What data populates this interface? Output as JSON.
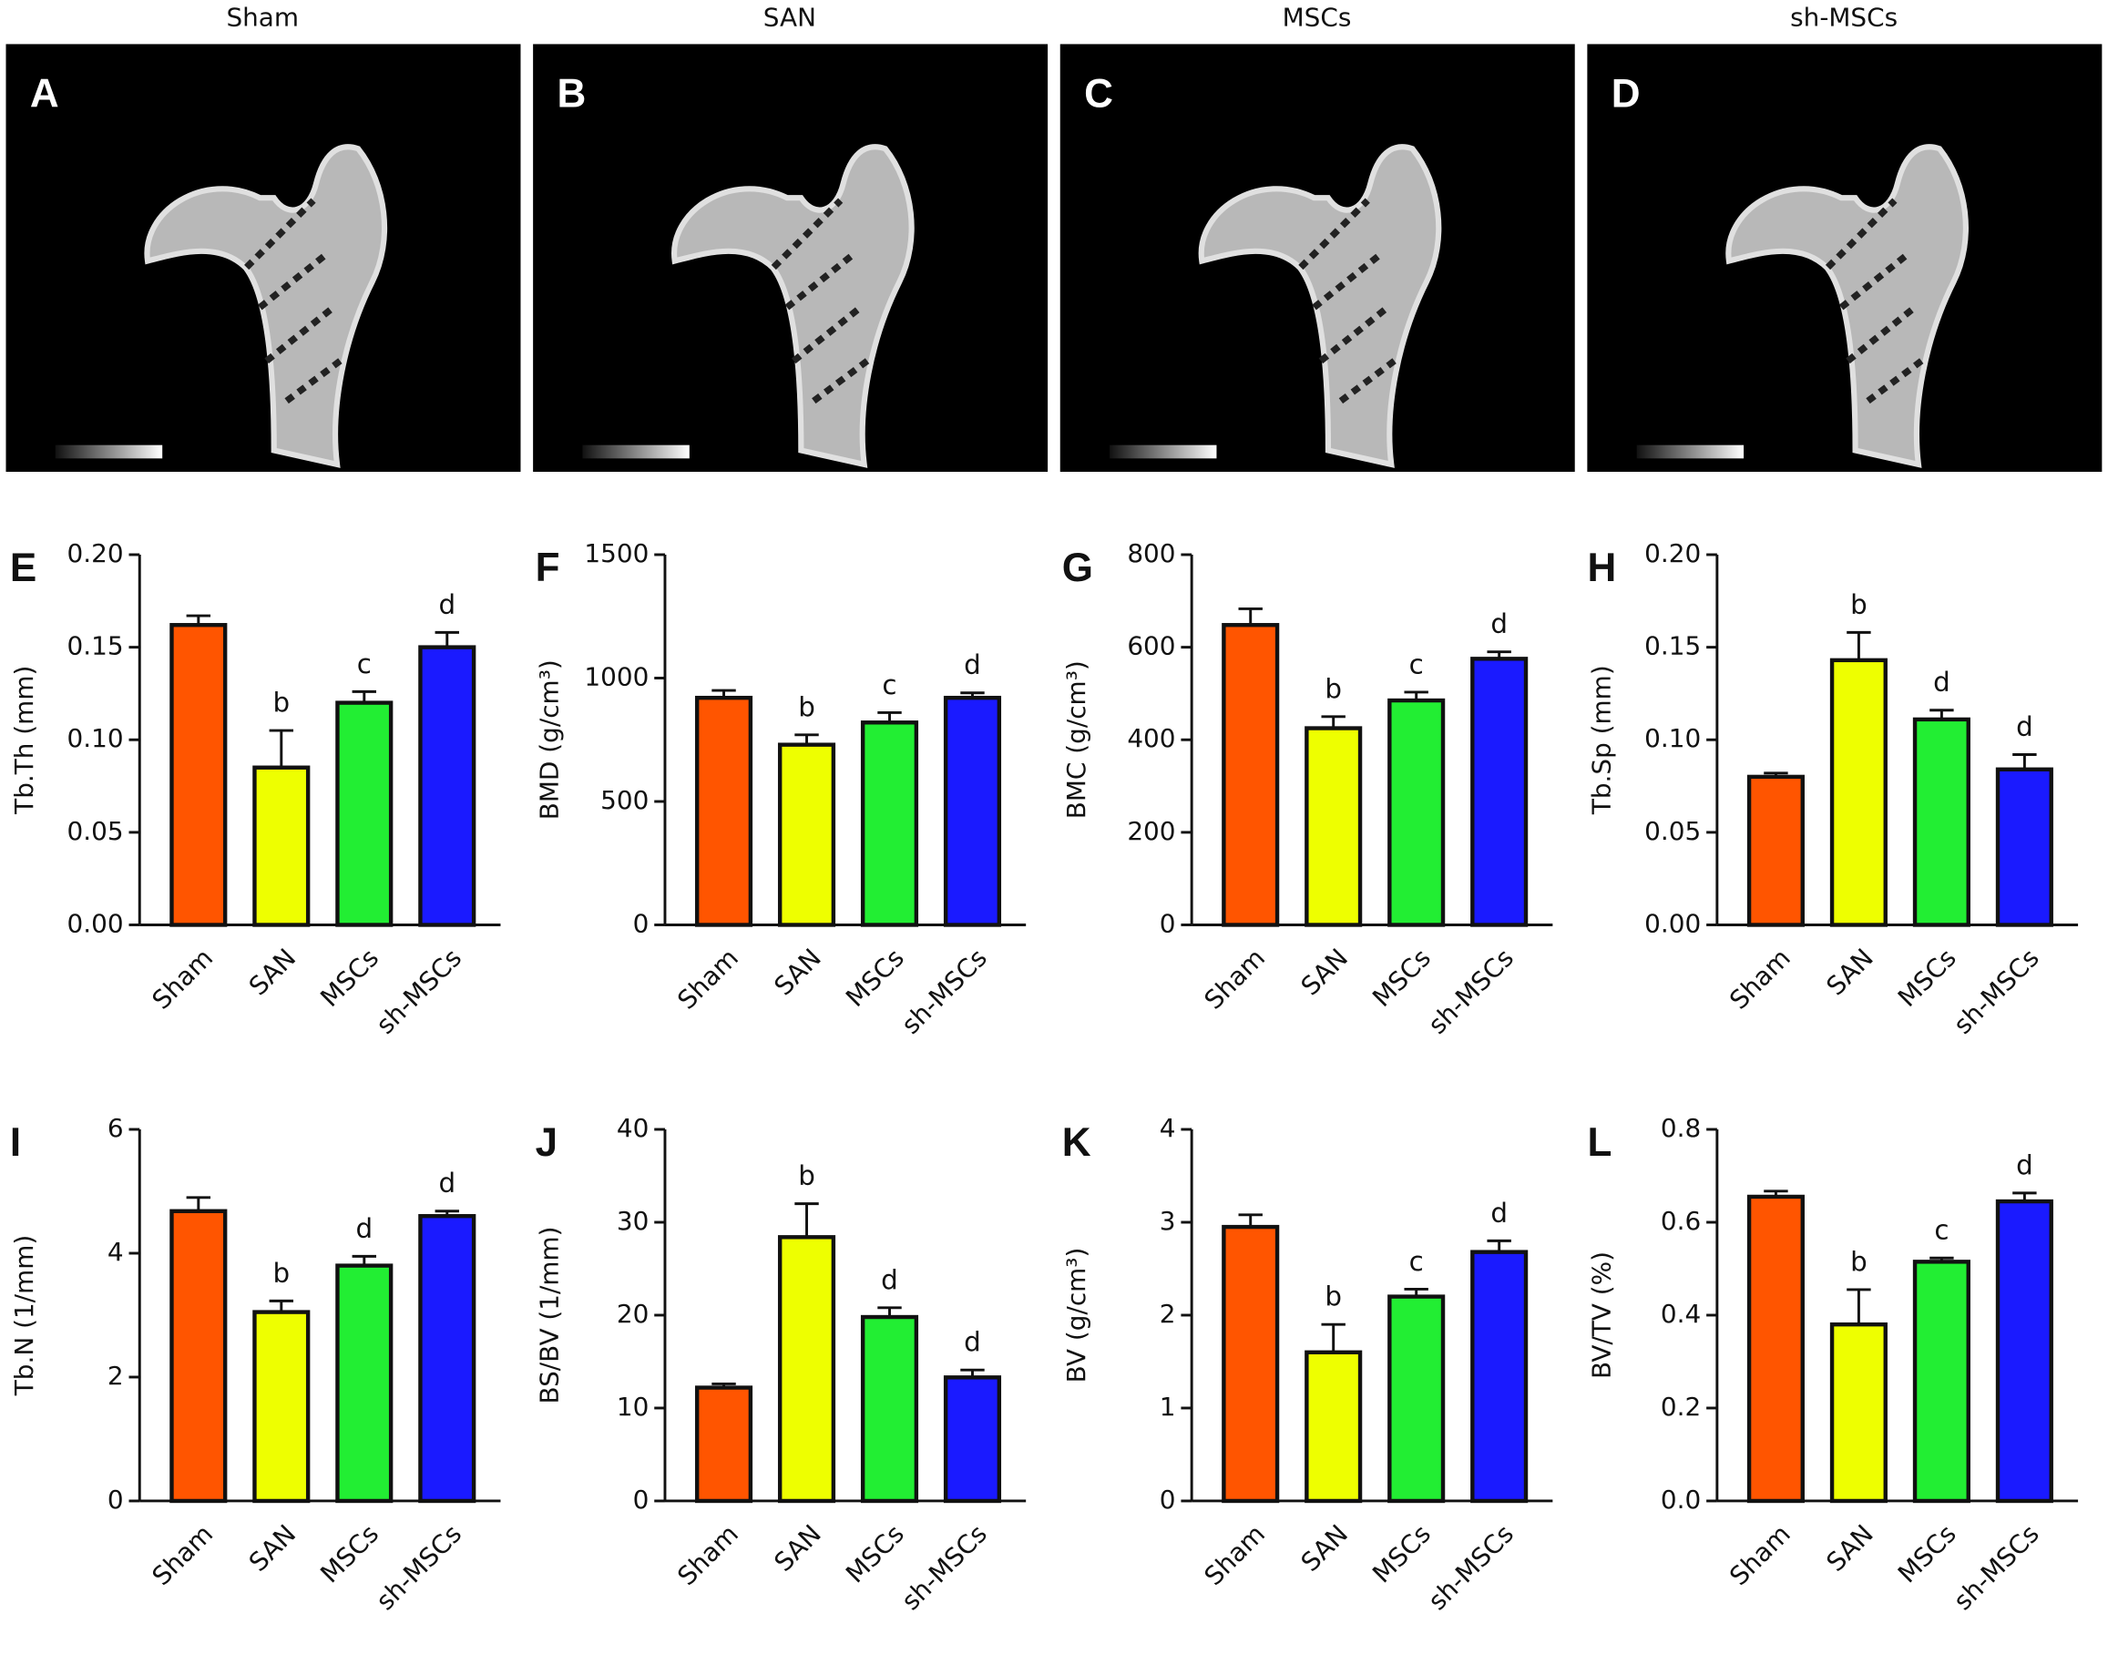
{
  "image_panels": [
    {
      "label": "A",
      "title": "Sham"
    },
    {
      "label": "B",
      "title": "SAN"
    },
    {
      "label": "C",
      "title": "MSCs"
    },
    {
      "label": "D",
      "title": "sh-MSCs"
    }
  ],
  "chart_data": [
    {
      "type": "bar",
      "panel": "E",
      "ylabel": "Tb.Th (mm)",
      "categories": [
        "Sham",
        "SAN",
        "MSCs",
        "sh-MSCs"
      ],
      "values": [
        0.162,
        0.085,
        0.12,
        0.15
      ],
      "errors": [
        0.005,
        0.02,
        0.006,
        0.008
      ],
      "annotations": [
        null,
        "b",
        "c",
        "d"
      ],
      "colors": [
        "#ff5500",
        "#eeff00",
        "#22ee33",
        "#1a1aff"
      ],
      "ylim": [
        0,
        0.2
      ],
      "yticks": [
        {
          "value": 0,
          "label": "0.00"
        },
        {
          "value": 0.05,
          "label": "0.05"
        },
        {
          "value": 0.1,
          "label": "0.10"
        },
        {
          "value": 0.15,
          "label": "0.15"
        },
        {
          "value": 0.2,
          "label": "0.20"
        }
      ]
    },
    {
      "type": "bar",
      "panel": "F",
      "ylabel": "BMD (g/cm³)",
      "categories": [
        "Sham",
        "SAN",
        "MSCs",
        "sh-MSCs"
      ],
      "values": [
        920,
        730,
        820,
        920
      ],
      "errors": [
        30,
        40,
        40,
        20
      ],
      "annotations": [
        null,
        "b",
        "c",
        "d"
      ],
      "colors": [
        "#ff5500",
        "#eeff00",
        "#22ee33",
        "#1a1aff"
      ],
      "ylim": [
        0,
        1500
      ],
      "yticks": [
        0,
        500,
        1000,
        1500
      ]
    },
    {
      "type": "bar",
      "panel": "G",
      "ylabel": "BMC (g/cm³)",
      "categories": [
        "Sham",
        "SAN",
        "MSCs",
        "sh-MSCs"
      ],
      "values": [
        648,
        425,
        485,
        575
      ],
      "errors": [
        35,
        25,
        18,
        15
      ],
      "annotations": [
        null,
        "b",
        "c",
        "d"
      ],
      "colors": [
        "#ff5500",
        "#eeff00",
        "#22ee33",
        "#1a1aff"
      ],
      "ylim": [
        0,
        800
      ],
      "yticks": [
        0,
        200,
        400,
        600,
        800
      ]
    },
    {
      "type": "bar",
      "panel": "H",
      "ylabel": "Tb.Sp (mm)",
      "categories": [
        "Sham",
        "SAN",
        "MSCs",
        "sh-MSCs"
      ],
      "values": [
        0.08,
        0.143,
        0.111,
        0.084
      ],
      "errors": [
        0.002,
        0.015,
        0.005,
        0.008
      ],
      "annotations": [
        null,
        "b",
        "d",
        "d"
      ],
      "colors": [
        "#ff5500",
        "#eeff00",
        "#22ee33",
        "#1a1aff"
      ],
      "ylim": [
        0,
        0.2
      ],
      "yticks": [
        {
          "value": 0,
          "label": "0.00"
        },
        {
          "value": 0.05,
          "label": "0.05"
        },
        {
          "value": 0.1,
          "label": "0.10"
        },
        {
          "value": 0.15,
          "label": "0.15"
        },
        {
          "value": 0.2,
          "label": "0.20"
        }
      ]
    },
    {
      "type": "bar",
      "panel": "I",
      "ylabel": "Tb.N (1/mm)",
      "categories": [
        "Sham",
        "SAN",
        "MSCs",
        "sh-MSCs"
      ],
      "values": [
        4.68,
        3.05,
        3.8,
        4.6
      ],
      "errors": [
        0.22,
        0.18,
        0.15,
        0.08
      ],
      "annotations": [
        null,
        "b",
        "d",
        "d"
      ],
      "colors": [
        "#ff5500",
        "#eeff00",
        "#22ee33",
        "#1a1aff"
      ],
      "ylim": [
        0,
        6
      ],
      "yticks": [
        0,
        2,
        4,
        6
      ]
    },
    {
      "type": "bar",
      "panel": "J",
      "ylabel": "BS/BV (1/mm)",
      "categories": [
        "Sham",
        "SAN",
        "MSCs",
        "sh-MSCs"
      ],
      "values": [
        12.2,
        28.4,
        19.8,
        13.3
      ],
      "errors": [
        0.4,
        3.6,
        1,
        0.8
      ],
      "annotations": [
        null,
        "b",
        "d",
        "d"
      ],
      "colors": [
        "#ff5500",
        "#eeff00",
        "#22ee33",
        "#1a1aff"
      ],
      "ylim": [
        0,
        40
      ],
      "yticks": [
        0,
        10,
        20,
        30,
        40
      ]
    },
    {
      "type": "bar",
      "panel": "K",
      "ylabel": "BV (g/cm³)",
      "categories": [
        "Sham",
        "SAN",
        "MSCs",
        "sh-MSCs"
      ],
      "values": [
        2.95,
        1.6,
        2.2,
        2.68
      ],
      "errors": [
        0.13,
        0.3,
        0.08,
        0.12
      ],
      "annotations": [
        null,
        "b",
        "c",
        "d"
      ],
      "colors": [
        "#ff5500",
        "#eeff00",
        "#22ee33",
        "#1a1aff"
      ],
      "ylim": [
        0,
        4
      ],
      "yticks": [
        0,
        1,
        2,
        3,
        4
      ]
    },
    {
      "type": "bar",
      "panel": "L",
      "ylabel": "BV/TV (%)",
      "categories": [
        "Sham",
        "SAN",
        "MSCs",
        "sh-MSCs"
      ],
      "values": [
        0.655,
        0.38,
        0.515,
        0.645
      ],
      "errors": [
        0.012,
        0.075,
        0.008,
        0.018
      ],
      "annotations": [
        null,
        "b",
        "c",
        "d"
      ],
      "colors": [
        "#ff5500",
        "#eeff00",
        "#22ee33",
        "#1a1aff"
      ],
      "ylim": [
        0,
        0.8
      ],
      "yticks": [
        {
          "value": 0,
          "label": "0.0"
        },
        0.2,
        0.4,
        0.6,
        0.8
      ]
    }
  ]
}
